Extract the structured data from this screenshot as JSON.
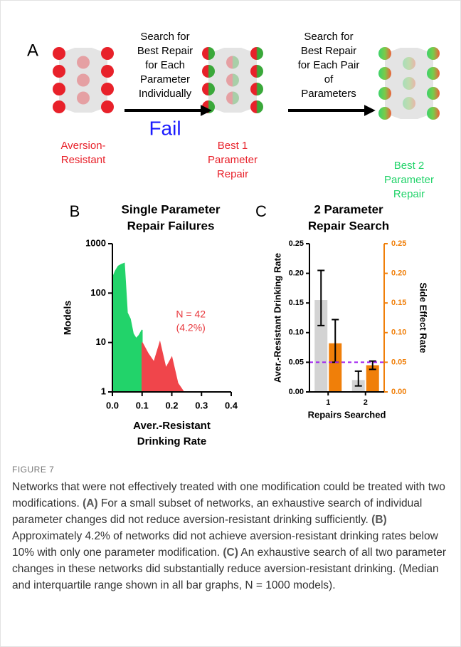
{
  "figure": {
    "panel_a": {
      "label": "A",
      "nodes": [
        {
          "label": [
            "Aversion-",
            "Resistant"
          ],
          "color": "#e8212a"
        },
        {
          "label": [
            "Best 1",
            "Parameter",
            "Repair"
          ],
          "color": "#e8212a"
        },
        {
          "label": [
            "Best 2",
            "Parameter",
            "Repair"
          ],
          "color": "#22d36a"
        }
      ],
      "steps": [
        {
          "text": [
            "Search for",
            "Best Repair",
            "for Each",
            "Parameter",
            "Individually"
          ],
          "result": "Fail",
          "result_color": "#1a1aff"
        },
        {
          "text": [
            "Search for",
            "Best Repair",
            "for Each Pair",
            "of",
            "Parameters"
          ]
        }
      ]
    }
  },
  "chart_data": [
    {
      "type": "area",
      "panel_label": "B",
      "title": [
        "Single Parameter",
        "Repair Failures"
      ],
      "ylabel": "Models",
      "xlabel": [
        "Aver.-Resistant",
        "Drinking Rate"
      ],
      "log_y": true,
      "xlim": [
        0,
        0.4
      ],
      "ylim": [
        1,
        1000
      ],
      "xticks": [
        {
          "value": 0,
          "label": "0.0"
        },
        0.1,
        0.2,
        0.3,
        0.4
      ],
      "yticks": [
        1,
        10,
        100,
        1000
      ],
      "series": [
        {
          "color": "#22d36a",
          "x": [
            0,
            0.01,
            0.02,
            0.03,
            0.04,
            0.05,
            0.06,
            0.07,
            0.08,
            0.09,
            0.1
          ],
          "values": [
            200,
            280,
            350,
            380,
            400,
            40,
            30,
            15,
            12,
            14,
            18
          ]
        },
        {
          "color": "#f0454b",
          "x": [
            0.1,
            0.12,
            0.14,
            0.16,
            0.18,
            0.2,
            0.22,
            0.24,
            0.3,
            0.4
          ],
          "values": [
            10,
            6,
            4,
            10,
            3,
            5,
            1.5,
            1,
            1,
            1
          ]
        }
      ],
      "annotation": [
        "N = 42",
        "(4.2%)"
      ],
      "annotation_color": "#e8383d"
    },
    {
      "type": "bar",
      "panel_label": "C",
      "title": [
        "2 Parameter",
        "Repair Search"
      ],
      "xlabel": "Repairs Searched",
      "ylabel": "Aver.-Resistant Drinking Rate",
      "y2label": "Side Effect Rate",
      "categories": [
        "1",
        "2"
      ],
      "ylim": [
        0,
        0.25
      ],
      "yticks": [
        {
          "value": 0,
          "label": "0.00"
        },
        {
          "value": 0.05,
          "label": "0.05"
        },
        {
          "value": 0.1,
          "label": "0.10"
        },
        {
          "value": 0.15,
          "label": "0.15"
        },
        {
          "value": 0.2,
          "label": "0.20"
        },
        {
          "value": 0.25,
          "label": "0.25"
        }
      ],
      "y2lim": [
        0,
        0.25
      ],
      "y2ticks": [
        {
          "value": 0,
          "label": "0.00"
        },
        {
          "value": 0.05,
          "label": "0.05"
        },
        {
          "value": 0.1,
          "label": "0.10"
        },
        {
          "value": 0.15,
          "label": "0.15"
        },
        {
          "value": 0.2,
          "label": "0.20"
        },
        {
          "value": 0.25,
          "label": "0.25"
        }
      ],
      "y2_color": "#f07f09",
      "series": [
        {
          "color": "#d3d3d3",
          "values": [
            0.155,
            0.02
          ],
          "lower": [
            0.112,
            0.01
          ],
          "upper": [
            0.205,
            0.035
          ]
        },
        {
          "color": "#f07f09",
          "axis": "y2",
          "values": [
            0.082,
            0.045
          ],
          "lower": [
            0.05,
            0.038
          ],
          "upper": [
            0.122,
            0.052
          ]
        }
      ],
      "hline": {
        "value": 0.05,
        "color": "#a020f0"
      }
    }
  ],
  "caption": {
    "label": "FIGURE 7",
    "segments": [
      {
        "text": "Networks that were not effectively treated with one modification could be treated with two modifications. ",
        "bold": false
      },
      {
        "text": "(A)",
        "bold": true
      },
      {
        "text": " For a small subset of networks, an exhaustive search of individual parameter changes did not reduce aversion-resistant drinking sufficiently. ",
        "bold": false
      },
      {
        "text": "(B)",
        "bold": true
      },
      {
        "text": " Approximately 4.2% of networks did not achieve aversion-resistant drinking rates below 10% with only one parameter modification. ",
        "bold": false
      },
      {
        "text": "(C)",
        "bold": true
      },
      {
        "text": " An exhaustive search of all two parameter changes in these networks did substantially reduce aversion-resistant drinking. (Median and interquartile range shown in all bar graphs, N = 1000 models).",
        "bold": false
      }
    ]
  }
}
